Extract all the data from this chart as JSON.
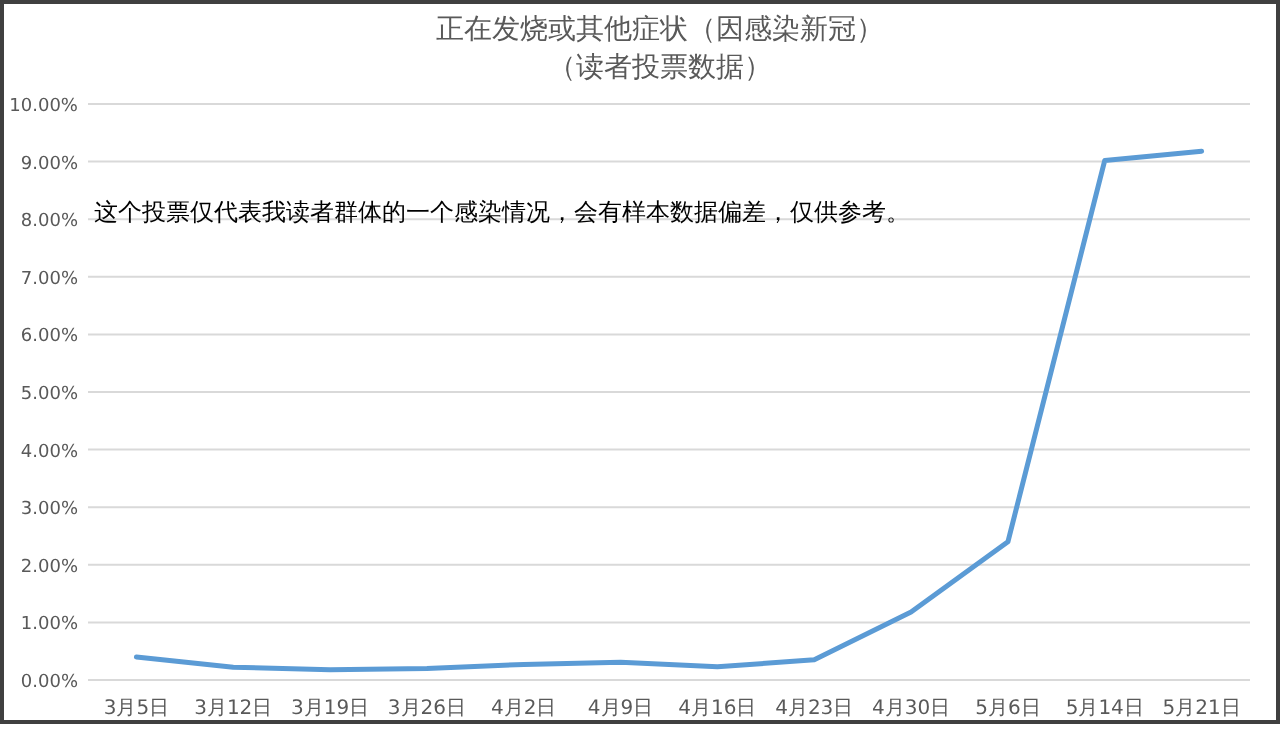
{
  "chart_data": {
    "type": "line",
    "title": "正在发烧或其他症状（因感染新冠）",
    "subtitle": "（读者投票数据）",
    "categories": [
      "3月5日",
      "3月12日",
      "3月19日",
      "3月26日",
      "4月2日",
      "4月9日",
      "4月16日",
      "4月23日",
      "4月30日",
      "5月6日",
      "5月14日",
      "5月21日"
    ],
    "series": [
      {
        "color": "#5b9bd5",
        "values": [
          0.4,
          0.22,
          0.18,
          0.2,
          0.27,
          0.31,
          0.23,
          0.35,
          1.18,
          2.4,
          9.02,
          9.18
        ]
      }
    ],
    "ylim": [
      0,
      10
    ],
    "yticks": [
      {
        "value": 0,
        "label": "0.00%"
      },
      {
        "value": 1,
        "label": "1.00%"
      },
      {
        "value": 2,
        "label": "2.00%"
      },
      {
        "value": 3,
        "label": "3.00%"
      },
      {
        "value": 4,
        "label": "4.00%"
      },
      {
        "value": 5,
        "label": "5.00%"
      },
      {
        "value": 6,
        "label": "6.00%"
      },
      {
        "value": 7,
        "label": "7.00%"
      },
      {
        "value": 8,
        "label": "8.00%"
      },
      {
        "value": 9,
        "label": "9.00%"
      },
      {
        "value": 10,
        "label": "10.00%"
      }
    ],
    "grid": "y",
    "marker": "none",
    "line_style": "solid",
    "annotations": [
      "这个投票仅代表我读者群体的一个感染情况，会有样本数据偏差，仅供参考。"
    ]
  }
}
